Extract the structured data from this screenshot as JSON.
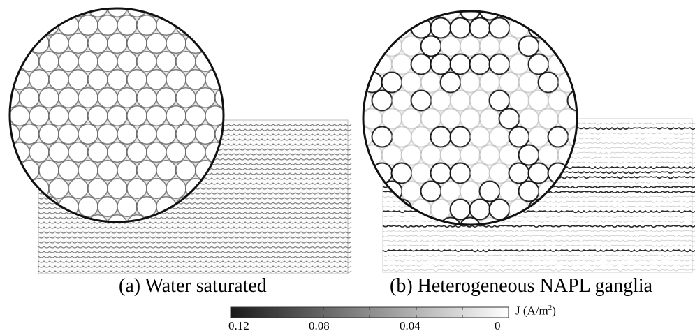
{
  "panels": [
    {
      "caption": "(a) Water saturated"
    },
    {
      "caption": "(b) Heterogeneous NAPL ganglia"
    }
  ],
  "colorbar": {
    "ticks": [
      "0.12",
      "0.08",
      "0.04",
      "0"
    ],
    "quantity": "J",
    "unit": "(A/m",
    "unit_exponent": "2",
    "unit_close": ")",
    "color_high": "#1a1a1a",
    "color_low": "#ffffff"
  }
}
